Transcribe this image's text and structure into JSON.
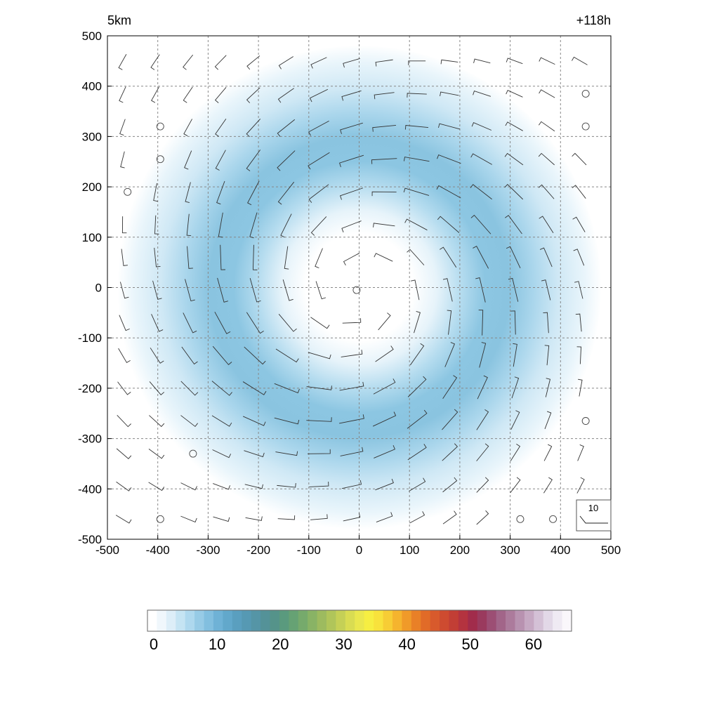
{
  "chart_data": {
    "type": "heatmap",
    "title_left": "5km",
    "title_right": "+118h",
    "xlim": [
      -500,
      500
    ],
    "ylim": [
      -500,
      500
    ],
    "xticks": [
      -500,
      -400,
      -300,
      -200,
      -100,
      0,
      100,
      200,
      300,
      400,
      500
    ],
    "yticks": [
      -500,
      -400,
      -300,
      -200,
      -100,
      0,
      100,
      200,
      300,
      400,
      500
    ],
    "grid": true,
    "field": {
      "center": [
        0,
        0
      ],
      "ring_radius": 250,
      "ring_width": 110,
      "ring_peak": 11,
      "eye_radius": 100,
      "outer_extent": 480,
      "description_units": "colour scale 0-65"
    },
    "wind_vectors": {
      "rotation": "counter-clockwise",
      "calm_points": [
        [
          -395,
          320
        ],
        [
          -395,
          255
        ],
        [
          -460,
          190
        ],
        [
          -5,
          -5
        ],
        [
          -330,
          -330
        ],
        [
          -395,
          -460
        ],
        [
          450,
          385
        ],
        [
          450,
          320
        ],
        [
          450,
          -265
        ],
        [
          320,
          -460
        ],
        [
          385,
          -460
        ]
      ]
    },
    "reference_vector": {
      "label": "10"
    },
    "colorbar": {
      "ticks": [
        0,
        10,
        20,
        30,
        40,
        50,
        60
      ],
      "min": -1,
      "max": 66,
      "colors": [
        "#ffffff",
        "#f0f7fc",
        "#ddeef8",
        "#c5e4f3",
        "#aed8ee",
        "#97cbe6",
        "#82bfdf",
        "#6fb2d6",
        "#62a8cb",
        "#5a9fbf",
        "#5699b3",
        "#5595a6",
        "#549298",
        "#55938a",
        "#5a9a7e",
        "#66a274",
        "#76aa6c",
        "#89b365",
        "#9dbb5f",
        "#b0c55a",
        "#c5d056",
        "#d9dc52",
        "#eae74e",
        "#f6ee42",
        "#f8e23c",
        "#f7cd35",
        "#f5b42e",
        "#f09a29",
        "#e98027",
        "#e16b28",
        "#d85a2c",
        "#ce4b30",
        "#c23e35",
        "#b4333f",
        "#a12c4b",
        "#9a3a5e",
        "#9c4e74",
        "#a26589",
        "#ac7b9c",
        "#b892b0",
        "#c6a9c3",
        "#d4c1d6",
        "#e2d8e7",
        "#efeaf3",
        "#faf7fb"
      ]
    }
  }
}
